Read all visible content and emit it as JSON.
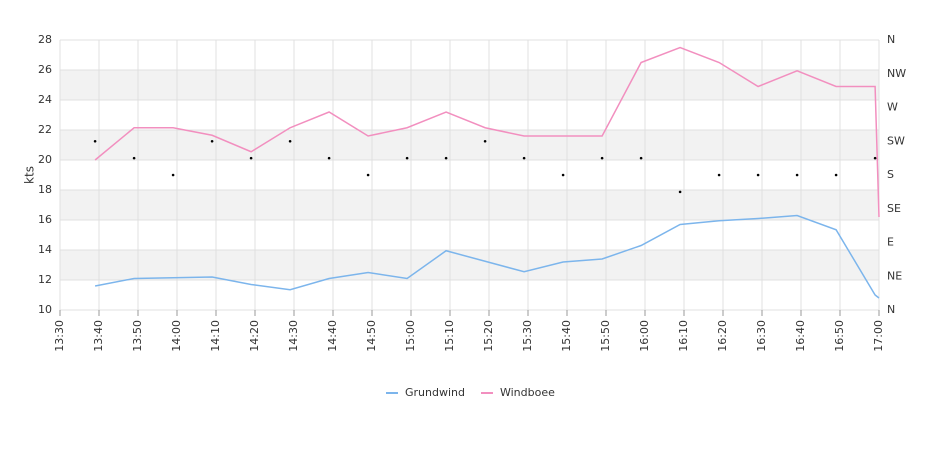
{
  "chart_data": {
    "type": "line",
    "y_label": "kts",
    "x": [
      "13:39",
      "13:49",
      "13:59",
      "14:09",
      "14:19",
      "14:29",
      "14:39",
      "14:49",
      "14:59",
      "15:09",
      "15:19",
      "15:29",
      "15:39",
      "15:49",
      "15:59",
      "16:09",
      "16:19",
      "16:29",
      "16:39",
      "16:49",
      "16:59",
      "17:00"
    ],
    "series": [
      {
        "name": "Grundwind",
        "color": "#7cb5ec",
        "values": [
          11.6,
          12.1,
          12.15,
          12.2,
          11.7,
          11.35,
          12.1,
          12.5,
          12.1,
          13.95,
          13.25,
          12.55,
          13.2,
          13.4,
          14.3,
          15.7,
          15.95,
          16.1,
          16.3,
          15.35,
          11.0,
          10.8
        ]
      },
      {
        "name": "Windboee",
        "color": "#f28fbf",
        "values": [
          20.0,
          22.15,
          22.15,
          21.65,
          20.55,
          22.15,
          23.2,
          21.6,
          22.15,
          23.2,
          22.15,
          21.6,
          21.6,
          21.6,
          26.5,
          27.5,
          26.5,
          24.9,
          25.95,
          24.9,
          24.9,
          16.2
        ]
      }
    ],
    "direction": {
      "axis": "y2",
      "color": "#000000",
      "values": [
        225,
        202.5,
        180,
        225,
        202.5,
        225,
        202.5,
        180,
        202.5,
        202.5,
        225,
        202.5,
        180,
        202.5,
        202.5,
        157.5,
        180,
        180,
        180,
        180,
        202.5,
        null
      ]
    },
    "xlim": [
      "13:30",
      "17:00"
    ],
    "xticks": [
      "13:30",
      "13:40",
      "13:50",
      "14:00",
      "14:10",
      "14:20",
      "14:30",
      "14:40",
      "14:50",
      "15:00",
      "15:10",
      "15:20",
      "15:30",
      "15:40",
      "15:50",
      "16:00",
      "16:10",
      "16:20",
      "16:30",
      "16:40",
      "16:50",
      "17:00"
    ],
    "ylim": [
      10,
      28
    ],
    "yticks": [
      10,
      12,
      14,
      16,
      18,
      20,
      22,
      24,
      26,
      28
    ],
    "y2lim": [
      0,
      360
    ],
    "y2ticks": [
      {
        "value": 0,
        "label": "N"
      },
      {
        "value": 45,
        "label": "NE"
      },
      {
        "value": 90,
        "label": "E"
      },
      {
        "value": 135,
        "label": "SE"
      },
      {
        "value": 180,
        "label": "S"
      },
      {
        "value": 225,
        "label": "SW"
      },
      {
        "value": 270,
        "label": "W"
      },
      {
        "value": 315,
        "label": "NW"
      },
      {
        "value": 360,
        "label": "N"
      }
    ],
    "grid": true
  }
}
